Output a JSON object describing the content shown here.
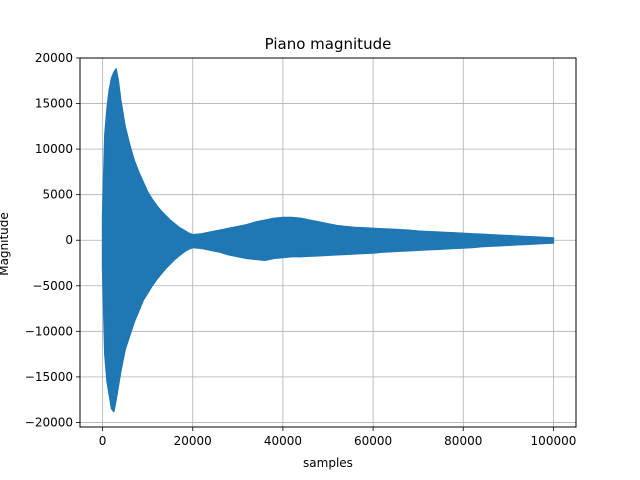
{
  "chart_data": {
    "type": "line",
    "title": "Piano magnitude",
    "xlabel": "samples",
    "ylabel": "Magnitude",
    "xlim": [
      -5000,
      105000
    ],
    "ylim": [
      -20500,
      20000
    ],
    "xticks": [
      0,
      20000,
      40000,
      60000,
      80000,
      100000
    ],
    "yticks": [
      -20000,
      -15000,
      -10000,
      -5000,
      0,
      5000,
      10000,
      15000,
      20000
    ],
    "grid": true,
    "series": [
      {
        "color": "#1f77b4",
        "envelope": {
          "x": [
            0,
            500,
            1000,
            1500,
            2000,
            2500,
            3000,
            3500,
            4000,
            5000,
            6000,
            7000,
            8000,
            9000,
            10000,
            11000,
            12000,
            13000,
            14000,
            15000,
            16000,
            17000,
            18000,
            19000,
            20000,
            22000,
            24000,
            26000,
            28000,
            30000,
            32000,
            34000,
            36000,
            38000,
            40000,
            42000,
            44000,
            46000,
            48000,
            50000,
            52000,
            54000,
            56000,
            58000,
            60000,
            62000,
            64000,
            66000,
            68000,
            70000,
            72000,
            74000,
            76000,
            78000,
            80000,
            82000,
            84000,
            86000,
            88000,
            90000,
            92000,
            94000,
            96000,
            98000,
            100000
          ],
          "upper": [
            2500,
            11500,
            14500,
            16500,
            17800,
            18400,
            18800,
            17500,
            15500,
            12500,
            10500,
            8800,
            7500,
            6400,
            5300,
            4500,
            3800,
            3200,
            2700,
            2200,
            1800,
            1400,
            1100,
            800,
            600,
            700,
            900,
            1100,
            1300,
            1500,
            1700,
            2000,
            2200,
            2400,
            2500,
            2500,
            2400,
            2200,
            2000,
            1800,
            1600,
            1500,
            1400,
            1350,
            1300,
            1250,
            1200,
            1150,
            1100,
            1000,
            950,
            900,
            850,
            800,
            750,
            700,
            650,
            600,
            550,
            500,
            450,
            400,
            350,
            300,
            250
          ],
          "lower": [
            -3000,
            -12500,
            -15500,
            -17000,
            -18500,
            -18800,
            -17500,
            -16000,
            -14500,
            -12000,
            -10500,
            -9000,
            -7800,
            -6600,
            -5800,
            -5000,
            -4300,
            -3700,
            -3100,
            -2600,
            -2100,
            -1700,
            -1300,
            -1000,
            -800,
            -900,
            -1100,
            -1300,
            -1600,
            -1800,
            -2000,
            -2100,
            -2200,
            -2000,
            -1900,
            -1800,
            -1800,
            -1750,
            -1700,
            -1650,
            -1600,
            -1550,
            -1500,
            -1450,
            -1400,
            -1300,
            -1250,
            -1200,
            -1150,
            -1100,
            -1050,
            -1000,
            -950,
            -900,
            -850,
            -800,
            -700,
            -650,
            -600,
            -550,
            -500,
            -450,
            -400,
            -350,
            -300
          ]
        }
      }
    ]
  }
}
